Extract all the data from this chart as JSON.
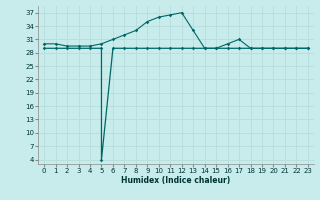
{
  "xlabel": "Humidex (Indice chaleur)",
  "background_color": "#c8ecec",
  "grid_color": "#b8dede",
  "line_color": "#006666",
  "x_ticks": [
    0,
    1,
    2,
    3,
    4,
    5,
    6,
    7,
    8,
    9,
    10,
    11,
    12,
    13,
    14,
    15,
    16,
    17,
    18,
    19,
    20,
    21,
    22,
    23
  ],
  "y_ticks": [
    4,
    7,
    10,
    13,
    16,
    19,
    22,
    25,
    28,
    31,
    34,
    37
  ],
  "ylim": [
    3,
    38.5
  ],
  "xlim": [
    -0.5,
    23.5
  ],
  "line1_x": [
    0,
    1,
    2,
    3,
    4,
    5,
    6,
    7,
    8,
    9,
    10,
    11,
    12,
    13,
    14,
    15,
    16,
    17,
    18,
    19,
    20,
    21,
    22,
    23
  ],
  "line1_y": [
    30,
    30,
    29.5,
    29.5,
    29.5,
    30,
    31,
    32,
    33,
    35,
    36,
    36.5,
    37,
    33,
    29,
    29,
    30,
    31,
    29,
    29,
    29,
    29,
    29,
    29
  ],
  "line2_x": [
    0,
    1,
    2,
    3,
    4,
    5,
    5,
    6,
    7,
    8,
    9,
    10,
    11,
    12,
    13,
    14,
    15,
    16,
    17,
    18,
    19,
    20,
    21,
    22,
    23
  ],
  "line2_y": [
    29,
    29,
    29,
    29,
    29,
    29,
    4,
    29,
    29,
    29,
    29,
    29,
    29,
    29,
    29,
    29,
    29,
    29,
    29,
    29,
    29,
    29,
    29,
    29,
    29
  ]
}
